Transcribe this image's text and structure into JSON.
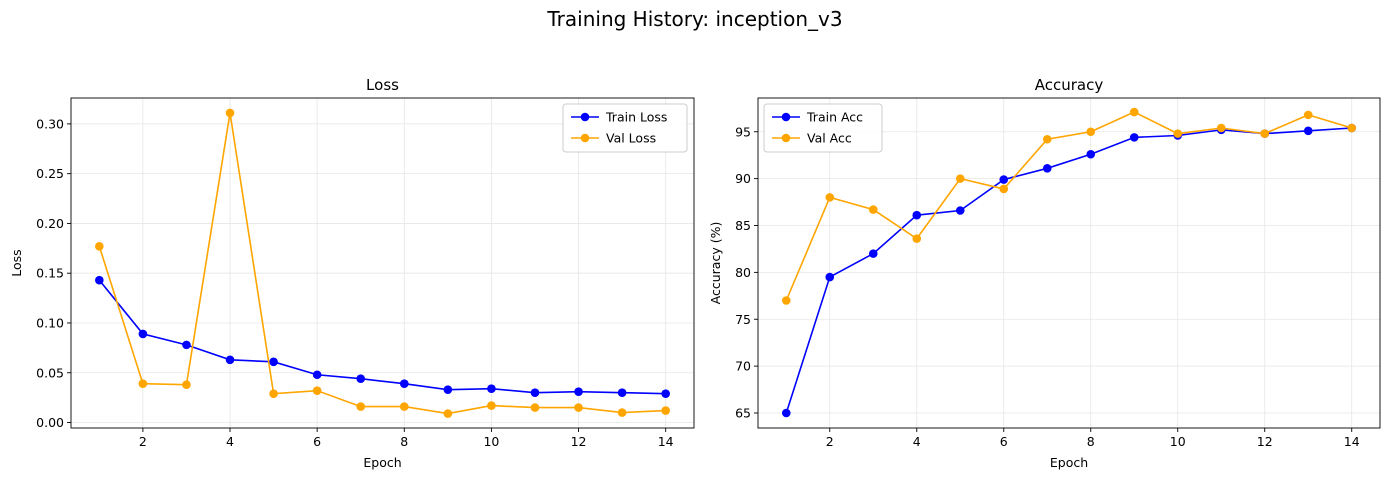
{
  "figure": {
    "title": "Training History: inception_v3"
  },
  "colors": {
    "train": "#0000ff",
    "val": "#ffa500",
    "grid": "#e6e6e6"
  },
  "chart_data": [
    {
      "type": "line",
      "title": "Loss",
      "xlabel": "Epoch",
      "ylabel": "Loss",
      "grid": true,
      "legend_position": "top-right",
      "xlim": [
        0.35,
        14.65
      ],
      "ylim": [
        -0.0055,
        0.326
      ],
      "xticks": [
        2,
        4,
        6,
        8,
        10,
        12,
        14
      ],
      "yticks": [
        0.0,
        0.05,
        0.1,
        0.15,
        0.2,
        0.25,
        0.3
      ],
      "ytick_labels": [
        "0.00",
        "0.05",
        "0.10",
        "0.15",
        "0.20",
        "0.25",
        "0.30"
      ],
      "x": [
        1,
        2,
        3,
        4,
        5,
        6,
        7,
        8,
        9,
        10,
        11,
        12,
        13,
        14
      ],
      "series": [
        {
          "name": "Train Loss",
          "color": "#0000ff",
          "values": [
            0.143,
            0.089,
            0.078,
            0.063,
            0.061,
            0.048,
            0.044,
            0.039,
            0.033,
            0.034,
            0.03,
            0.031,
            0.03,
            0.029
          ]
        },
        {
          "name": "Val Loss",
          "color": "#ffa500",
          "values": [
            0.177,
            0.039,
            0.038,
            0.311,
            0.029,
            0.032,
            0.016,
            0.016,
            0.009,
            0.017,
            0.015,
            0.015,
            0.01,
            0.012
          ]
        }
      ]
    },
    {
      "type": "line",
      "title": "Accuracy",
      "xlabel": "Epoch",
      "ylabel": "Accuracy (%)",
      "grid": true,
      "legend_position": "top-left",
      "xlim": [
        0.35,
        14.65
      ],
      "ylim": [
        63.4,
        98.6
      ],
      "xticks": [
        2,
        4,
        6,
        8,
        10,
        12,
        14
      ],
      "yticks": [
        65,
        70,
        75,
        80,
        85,
        90,
        95
      ],
      "ytick_labels": [
        "65",
        "70",
        "75",
        "80",
        "85",
        "90",
        "95"
      ],
      "x": [
        1,
        2,
        3,
        4,
        5,
        6,
        7,
        8,
        9,
        10,
        11,
        12,
        13,
        14
      ],
      "series": [
        {
          "name": "Train Acc",
          "color": "#0000ff",
          "values": [
            65.0,
            79.5,
            82.0,
            86.1,
            86.6,
            89.9,
            91.1,
            92.6,
            94.4,
            94.6,
            95.2,
            94.8,
            95.1,
            95.4
          ]
        },
        {
          "name": "Val Acc",
          "color": "#ffa500",
          "values": [
            77.0,
            88.0,
            86.7,
            83.6,
            90.0,
            88.9,
            94.2,
            95.0,
            97.1,
            94.8,
            95.4,
            94.8,
            96.8,
            95.4
          ]
        }
      ]
    }
  ]
}
